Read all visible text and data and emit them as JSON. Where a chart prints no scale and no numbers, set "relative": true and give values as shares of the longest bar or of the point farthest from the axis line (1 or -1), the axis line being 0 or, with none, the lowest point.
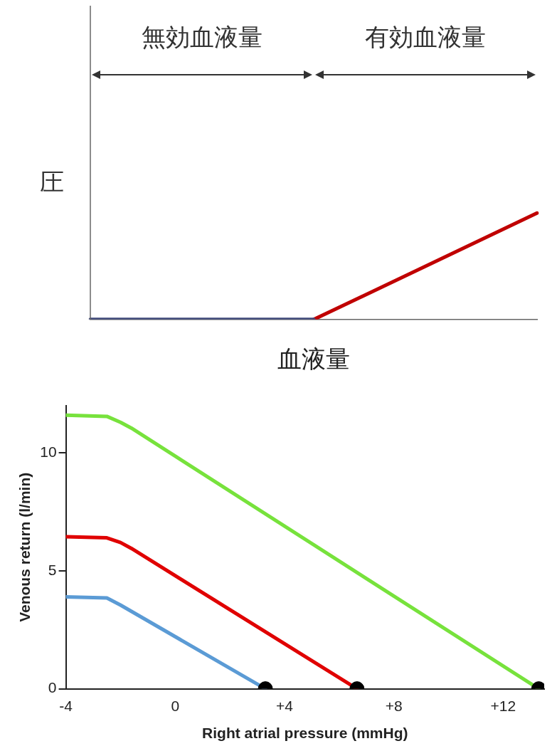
{
  "chart_data": [
    {
      "type": "line",
      "relative": true,
      "ylabel": "圧",
      "xlabel": "血液量",
      "categories": [
        null,
        null,
        null
      ],
      "marker": "none",
      "annotations": [
        "無効血液量",
        "有効血液量"
      ],
      "series": [
        {
          "color": "#414b7c",
          "values": [
            0,
            0,
            null
          ]
        },
        {
          "color": "#c00000",
          "values": [
            null,
            0,
            1
          ]
        }
      ]
    },
    {
      "type": "line",
      "xlabel": "Right atrial pressure (mmHg)",
      "ylabel": "Venous return (l/min)",
      "xlim": [
        -4,
        13.5
      ],
      "ylim": [
        0,
        12
      ],
      "xticks": [
        -4,
        0,
        {
          "value": 4,
          "label": "+4"
        },
        {
          "value": 8,
          "label": "+8"
        },
        {
          "value": 12,
          "label": "+12"
        }
      ],
      "yticks": [
        0,
        5,
        10
      ],
      "grid": false,
      "legend": false,
      "marker": "none",
      "series": [
        {
          "color": "#77e23c",
          "x": [
            -4,
            -2.5,
            -2,
            -1.6,
            13.3
          ],
          "values": [
            11.6,
            11.55,
            11.3,
            11.05,
            0
          ]
        },
        {
          "color": "#e00000",
          "x": [
            -4,
            -2.5,
            -2,
            -1.6,
            6.65
          ],
          "values": [
            6.45,
            6.4,
            6.2,
            5.95,
            0
          ]
        },
        {
          "color": "#5b9bd5",
          "x": [
            -4,
            -2.5,
            -2,
            3.3
          ],
          "values": [
            3.9,
            3.85,
            3.55,
            0
          ]
        },
        {
          "type": "scatter",
          "color": "#000000",
          "marker": "circle",
          "x": [
            3.3,
            6.65,
            13.3
          ],
          "values": [
            0,
            0,
            0
          ]
        }
      ]
    }
  ]
}
